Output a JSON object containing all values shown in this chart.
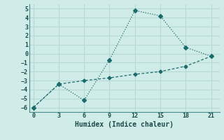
{
  "xlabel": "Humidex (Indice chaleur)",
  "bg_color": "#d0ece8",
  "grid_color": "#b8d8d4",
  "line_color": "#1a6b6b",
  "line1_x": [
    0,
    3,
    6,
    9,
    12,
    15,
    18,
    21
  ],
  "line1_y": [
    -6.0,
    -3.4,
    -5.2,
    -0.7,
    4.8,
    4.2,
    0.7,
    -0.3
  ],
  "line2_x": [
    0,
    3,
    6,
    9,
    12,
    15,
    18,
    21
  ],
  "line2_y": [
    -6.0,
    -3.4,
    -3.0,
    -2.7,
    -2.3,
    -2.0,
    -1.4,
    -0.3
  ],
  "xlim": [
    -0.5,
    22
  ],
  "ylim": [
    -6.5,
    5.5
  ],
  "xticks": [
    0,
    3,
    6,
    9,
    12,
    15,
    18,
    21
  ],
  "yticks": [
    -6,
    -5,
    -4,
    -3,
    -2,
    -1,
    0,
    1,
    2,
    3,
    4,
    5
  ]
}
